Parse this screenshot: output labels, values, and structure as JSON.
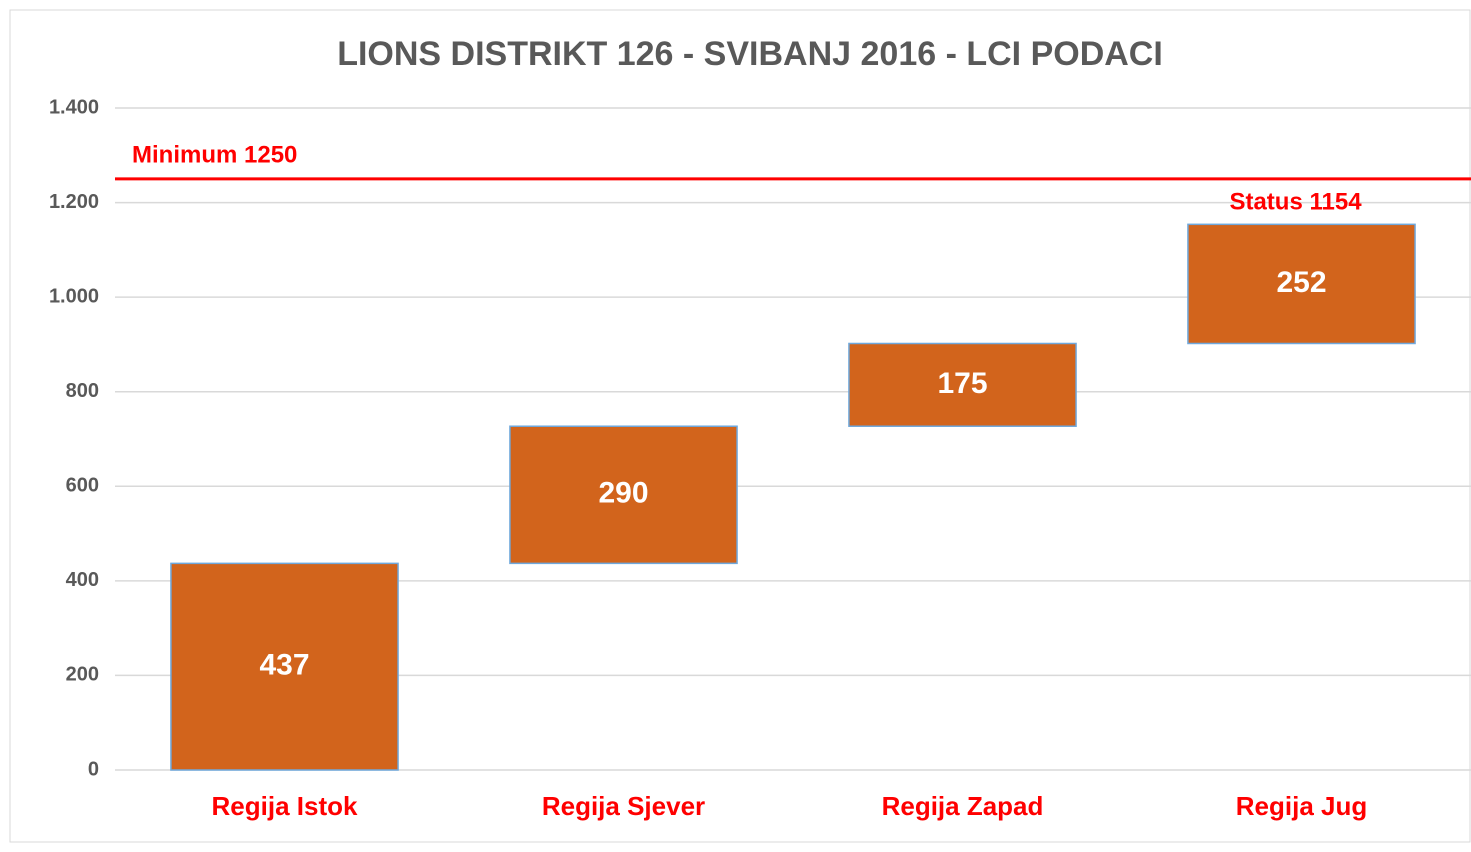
{
  "chart_data": {
    "type": "waterfall",
    "title": "LIONS DISTRIKT 126 - SVIBANJ 2016 - LCI PODACI",
    "categories": [
      "Regija Istok",
      "Regija Sjever",
      "Regija Zapad",
      "Regija Jug"
    ],
    "values": [
      437,
      290,
      175,
      252
    ],
    "color": "#d2641c",
    "ylim": [
      0,
      1400
    ],
    "yticks": [
      0,
      200,
      400,
      600,
      800,
      {
        "value": 1000,
        "label": "1.000"
      },
      {
        "value": 1200,
        "label": "1.200"
      },
      {
        "value": 1400,
        "label": "1.400"
      }
    ],
    "grid": true,
    "reference_line": {
      "text": "Minimum 1250",
      "value": 1250,
      "color": "#ff0000"
    },
    "total_label": {
      "text": "Status 1154",
      "value": 1154,
      "color": "#ff0000"
    }
  }
}
